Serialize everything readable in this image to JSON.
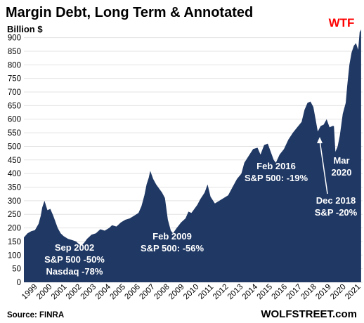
{
  "chart_data": {
    "type": "area",
    "title": "Margin Debt, Long Term & Annotated",
    "ylabel": "Billion $",
    "ylim": [
      0,
      930
    ],
    "yticks": [
      0,
      50,
      100,
      150,
      200,
      250,
      300,
      350,
      400,
      450,
      500,
      550,
      600,
      650,
      700,
      750,
      800,
      850,
      900
    ],
    "xlim": [
      1999,
      2022.05
    ],
    "xtick_labels": [
      "1999",
      "2000",
      "2001",
      "2002",
      "2003",
      "2004",
      "2005",
      "2006",
      "2007",
      "2008",
      "2009",
      "2010",
      "2011",
      "2012",
      "2013",
      "2014",
      "2015",
      "2016",
      "2017",
      "2018",
      "2019",
      "2020",
      "2021"
    ],
    "grid": true,
    "legend": "none",
    "series": [
      {
        "fill_color": "#1f3864",
        "x": [
          1999.0,
          1999.25,
          1999.5,
          1999.75,
          2000.0,
          2000.15,
          2000.25,
          2000.4,
          2000.6,
          2000.8,
          2001.0,
          2001.3,
          2001.5,
          2001.7,
          2002.0,
          2002.3,
          2002.55,
          2002.75,
          2002.9,
          2003.1,
          2003.3,
          2003.6,
          2003.9,
          2004.2,
          2004.5,
          2004.8,
          2005.0,
          2005.3,
          2005.6,
          2005.9,
          2006.2,
          2006.5,
          2006.8,
          2007.0,
          2007.2,
          2007.35,
          2007.5,
          2007.6,
          2007.8,
          2008.0,
          2008.2,
          2008.4,
          2008.6,
          2008.8,
          2009.0,
          2009.15,
          2009.4,
          2009.7,
          2010.0,
          2010.2,
          2010.4,
          2010.6,
          2010.8,
          2011.0,
          2011.3,
          2011.5,
          2011.7,
          2012.0,
          2012.3,
          2012.6,
          2012.9,
          2013.2,
          2013.5,
          2013.8,
          2014.0,
          2014.3,
          2014.6,
          2014.9,
          2015.1,
          2015.35,
          2015.6,
          2015.8,
          2016.0,
          2016.15,
          2016.4,
          2016.7,
          2017.0,
          2017.3,
          2017.6,
          2017.9,
          2018.1,
          2018.3,
          2018.5,
          2018.7,
          2018.85,
          2019.0,
          2019.2,
          2019.4,
          2019.6,
          2019.8,
          2020.0,
          2020.1,
          2020.2,
          2020.35,
          2020.5,
          2020.7,
          2020.9,
          2021.0,
          2021.15,
          2021.3,
          2021.45,
          2021.6,
          2021.75,
          2021.85,
          2021.95
        ],
        "values": [
          165,
          180,
          188,
          192,
          215,
          245,
          275,
          300,
          265,
          270,
          245,
          200,
          180,
          170,
          160,
          155,
          150,
          140,
          135,
          145,
          160,
          175,
          180,
          195,
          190,
          200,
          210,
          205,
          220,
          230,
          235,
          245,
          255,
          280,
          320,
          360,
          385,
          410,
          380,
          360,
          345,
          330,
          310,
          230,
          190,
          180,
          200,
          220,
          235,
          260,
          255,
          270,
          285,
          305,
          330,
          360,
          315,
          290,
          300,
          310,
          320,
          350,
          380,
          400,
          440,
          465,
          490,
          495,
          470,
          505,
          510,
          480,
          450,
          440,
          470,
          490,
          525,
          550,
          570,
          590,
          635,
          660,
          665,
          645,
          600,
          555,
          575,
          580,
          600,
          570,
          575,
          575,
          480,
          500,
          540,
          620,
          660,
          720,
          800,
          845,
          870,
          880,
          855,
          920,
          930
        ]
      }
    ],
    "annotations": {
      "a2002_l1": "Sep 2002",
      "a2002_l2": "S&P 500 -50%",
      "a2002_l3": "Nasdaq -78%",
      "a2009_l1": "Feb  2009",
      "a2009_l2": "S&P 500: -56%",
      "a2016_l1": "Feb 2016",
      "a2016_l2": "S&P 500: -19%",
      "a2018_l1": "Dec 2018",
      "a2018_l2": "S&P -20%",
      "a2020_l1": "Mar",
      "a2020_l2": "2020",
      "wtf": "WTF"
    }
  },
  "footer": {
    "source": "Source: FINRA",
    "brand": "WOLFSTREET.com"
  }
}
